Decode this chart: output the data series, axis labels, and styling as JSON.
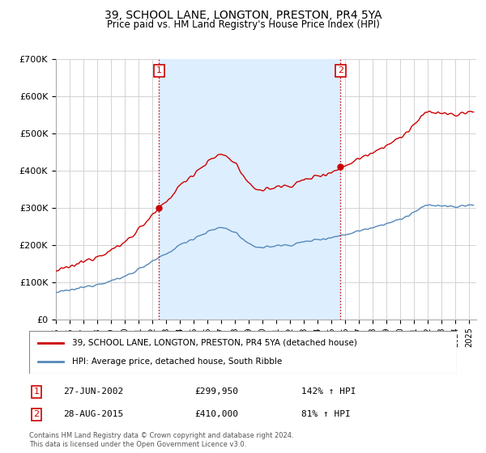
{
  "title": "39, SCHOOL LANE, LONGTON, PRESTON, PR4 5YA",
  "subtitle": "Price paid vs. HM Land Registry's House Price Index (HPI)",
  "legend_line1": "39, SCHOOL LANE, LONGTON, PRESTON, PR4 5YA (detached house)",
  "legend_line2": "HPI: Average price, detached house, South Ribble",
  "footnote1": "Contains HM Land Registry data © Crown copyright and database right 2024.",
  "footnote2": "This data is licensed under the Open Government Licence v3.0.",
  "transaction1_date": "27-JUN-2002",
  "transaction1_price": "£299,950",
  "transaction1_hpi": "142% ↑ HPI",
  "transaction2_date": "28-AUG-2015",
  "transaction2_price": "£410,000",
  "transaction2_hpi": "81% ↑ HPI",
  "hpi_color": "#5588bb",
  "price_color": "#cc0000",
  "vline_color": "#cc0000",
  "shade_color": "#ddeeff",
  "sale1_year": 2002.49,
  "sale1_price": 299950,
  "sale2_year": 2015.65,
  "sale2_price": 410000,
  "ylim_min": 0,
  "ylim_max": 700000,
  "xlim_start": 1995.0,
  "xlim_end": 2025.5,
  "hpi_knots_t": [
    1995.0,
    1996.0,
    1997.0,
    1998.0,
    1999.0,
    2000.0,
    2001.0,
    2002.0,
    2003.0,
    2004.0,
    2005.0,
    2006.0,
    2007.0,
    2008.0,
    2009.0,
    2010.0,
    2011.0,
    2012.0,
    2013.0,
    2014.0,
    2015.0,
    2016.0,
    2017.0,
    2018.0,
    2019.0,
    2020.0,
    2021.0,
    2022.0,
    2023.0,
    2024.0,
    2025.3
  ],
  "hpi_knots_v": [
    72000,
    78000,
    86000,
    95000,
    103000,
    115000,
    135000,
    155000,
    175000,
    200000,
    218000,
    235000,
    248000,
    235000,
    200000,
    193000,
    198000,
    200000,
    208000,
    215000,
    220000,
    228000,
    238000,
    248000,
    258000,
    268000,
    288000,
    308000,
    305000,
    302000,
    308000
  ]
}
